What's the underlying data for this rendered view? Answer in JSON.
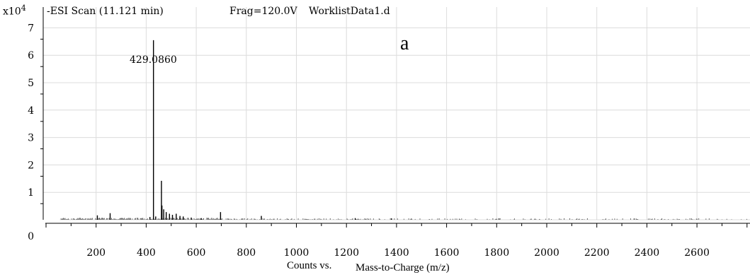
{
  "chart_data": {
    "type": "bar",
    "scan_title": "-ESI Scan (11.121 min)",
    "frag": "Frag=120.0V",
    "file": "WorklistData1.d",
    "panel_label": "a",
    "y_multiplier": "x10",
    "y_exponent": "4",
    "xlabel_prefix": "Counts vs.",
    "xlabel": "Mass-to-Charge (m/z)",
    "xlim": [
      0,
      2800
    ],
    "ylim": [
      0,
      8
    ],
    "x_ticks": [
      200,
      400,
      600,
      800,
      1000,
      1200,
      1400,
      1600,
      1800,
      2000,
      2200,
      2400,
      2600
    ],
    "y_ticks": [
      0,
      1,
      2,
      3,
      4,
      5,
      6,
      7
    ],
    "grid": true,
    "base_peak_label": "429.0860",
    "peaks": [
      {
        "mz": 429.086,
        "intensity": 6.55
      },
      {
        "mz": 461,
        "intensity": 1.42
      },
      {
        "mz": 463,
        "intensity": 0.52
      },
      {
        "mz": 470,
        "intensity": 0.38
      },
      {
        "mz": 480,
        "intensity": 0.28
      },
      {
        "mz": 493,
        "intensity": 0.22
      },
      {
        "mz": 505,
        "intensity": 0.18
      },
      {
        "mz": 520,
        "intensity": 0.22
      },
      {
        "mz": 535,
        "intensity": 0.14
      },
      {
        "mz": 548,
        "intensity": 0.12
      },
      {
        "mz": 256,
        "intensity": 0.24
      },
      {
        "mz": 205,
        "intensity": 0.16
      },
      {
        "mz": 415,
        "intensity": 0.1
      },
      {
        "mz": 438,
        "intensity": 0.12
      },
      {
        "mz": 697,
        "intensity": 0.28
      },
      {
        "mz": 860,
        "intensity": 0.14
      },
      {
        "mz": 580,
        "intensity": 0.08
      },
      {
        "mz": 620,
        "intensity": 0.06
      },
      {
        "mz": 1235,
        "intensity": 0.06
      },
      {
        "mz": 1380,
        "intensity": 0.05
      }
    ]
  }
}
